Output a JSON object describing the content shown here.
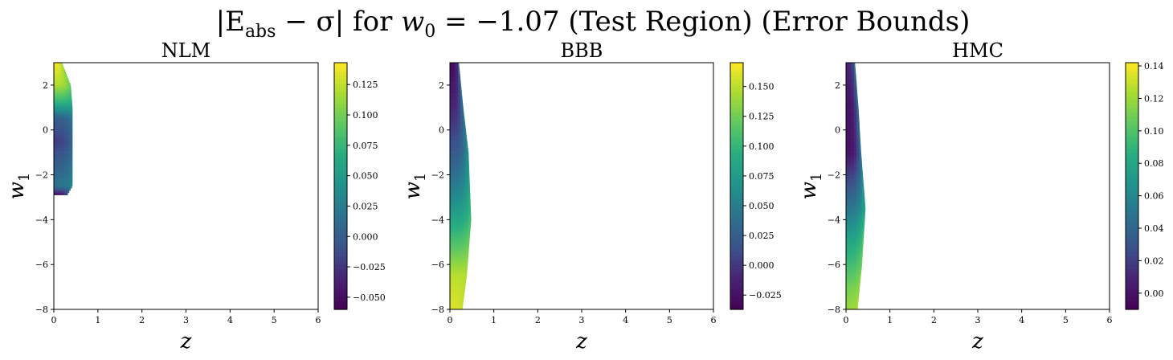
{
  "figure": {
    "title_parts": {
      "a": "|E",
      "a_sub": "abs",
      "b": " − σ| for ",
      "c": "w",
      "c_sub": "0",
      "d": " = −1.07 (Test Region) (Error Bounds)"
    }
  },
  "chart_data": [
    {
      "type": "heatmap",
      "title": "NLM",
      "xlabel": "z",
      "ylabel": "w1",
      "xlim": [
        0,
        6
      ],
      "ylim": [
        -8,
        3
      ],
      "xticks": [
        0,
        1,
        2,
        3,
        4,
        5,
        6
      ],
      "yticks": [
        -8,
        -6,
        -4,
        -2,
        0,
        2
      ],
      "colorbar": {
        "colormap": "viridis",
        "vmin": -0.06,
        "vmax": 0.143,
        "ticks": [
          "-0.050",
          "-0.025",
          "0.000",
          "0.025",
          "0.050",
          "0.075",
          "0.100",
          "0.125"
        ],
        "tick_values": [
          -0.05,
          -0.025,
          0.0,
          0.025,
          0.05,
          0.075,
          0.1,
          0.125
        ]
      },
      "region": {
        "w1_min": -2.9,
        "w1_max": 3.0,
        "z_extent_by_w1": [
          {
            "w1": 3.0,
            "z_max": 0.18
          },
          {
            "w1": 2.0,
            "z_max": 0.38
          },
          {
            "w1": 1.0,
            "z_max": 0.42
          },
          {
            "w1": -1.0,
            "z_max": 0.42
          },
          {
            "w1": -2.5,
            "z_max": 0.42
          },
          {
            "w1": -2.9,
            "z_max": 0.3
          }
        ],
        "value_by_w1": [
          {
            "w1": 3.0,
            "value": 0.14
          },
          {
            "w1": 2.0,
            "value": 0.12
          },
          {
            "w1": 1.2,
            "value": 0.07
          },
          {
            "w1": 0.5,
            "value": 0.0
          },
          {
            "w1": -0.5,
            "value": -0.02
          },
          {
            "w1": -1.5,
            "value": 0.0
          },
          {
            "w1": -2.5,
            "value": 0.02
          },
          {
            "w1": -2.9,
            "value": -0.05
          }
        ],
        "right_edge_value": 0.055
      }
    },
    {
      "type": "heatmap",
      "title": "BBB",
      "xlabel": "z",
      "ylabel": "w1",
      "xlim": [
        0,
        6
      ],
      "ylim": [
        -8,
        3
      ],
      "xticks": [
        0,
        1,
        2,
        3,
        4,
        5,
        6
      ],
      "yticks": [
        -8,
        -6,
        -4,
        -2,
        0,
        2
      ],
      "colorbar": {
        "colormap": "viridis",
        "vmin": -0.037,
        "vmax": 0.17,
        "ticks": [
          "-0.025",
          "0.000",
          "0.025",
          "0.050",
          "0.075",
          "0.100",
          "0.125",
          "0.150"
        ],
        "tick_values": [
          -0.025,
          0.0,
          0.025,
          0.05,
          0.075,
          0.1,
          0.125,
          0.15
        ]
      },
      "region": {
        "w1_min": -8.0,
        "w1_max": 3.0,
        "z_extent_by_w1": [
          {
            "w1": 3.0,
            "z_max": 0.2
          },
          {
            "w1": 1.0,
            "z_max": 0.3
          },
          {
            "w1": -1.0,
            "z_max": 0.42
          },
          {
            "w1": -4.0,
            "z_max": 0.48
          },
          {
            "w1": -6.5,
            "z_max": 0.38
          },
          {
            "w1": -8.0,
            "z_max": 0.28
          }
        ],
        "value_by_w1": [
          {
            "w1": 3.0,
            "value": -0.03
          },
          {
            "w1": 1.0,
            "value": -0.01
          },
          {
            "w1": -1.0,
            "value": 0.02
          },
          {
            "w1": -3.0,
            "value": 0.06
          },
          {
            "w1": -5.0,
            "value": 0.11
          },
          {
            "w1": -6.5,
            "value": 0.15
          },
          {
            "w1": -8.0,
            "value": 0.16
          }
        ],
        "right_edge_value": 0.14
      }
    },
    {
      "type": "heatmap",
      "title": "HMC",
      "xlabel": "z",
      "ylabel": "w1",
      "xlim": [
        0,
        6
      ],
      "ylim": [
        -8,
        3
      ],
      "xticks": [
        0,
        1,
        2,
        3,
        4,
        5,
        6
      ],
      "yticks": [
        -8,
        -6,
        -4,
        -2,
        0,
        2
      ],
      "colorbar": {
        "colormap": "viridis",
        "vmin": -0.01,
        "vmax": 0.142,
        "ticks": [
          "0.00",
          "0.02",
          "0.04",
          "0.06",
          "0.08",
          "0.10",
          "0.12",
          "0.14"
        ],
        "tick_values": [
          0.0,
          0.02,
          0.04,
          0.06,
          0.08,
          0.1,
          0.12,
          0.14
        ]
      },
      "region": {
        "w1_min": -8.0,
        "w1_max": 3.0,
        "z_extent_by_w1": [
          {
            "w1": 3.0,
            "z_max": 0.2
          },
          {
            "w1": 1.0,
            "z_max": 0.28
          },
          {
            "w1": -1.0,
            "z_max": 0.34
          },
          {
            "w1": -3.5,
            "z_max": 0.44
          },
          {
            "w1": -6.0,
            "z_max": 0.36
          },
          {
            "w1": -8.0,
            "z_max": 0.26
          }
        ],
        "value_by_w1": [
          {
            "w1": 3.0,
            "value": 0.01
          },
          {
            "w1": 1.0,
            "value": 0.0
          },
          {
            "w1": -1.0,
            "value": 0.0
          },
          {
            "w1": -3.0,
            "value": 0.04
          },
          {
            "w1": -5.0,
            "value": 0.08
          },
          {
            "w1": -7.0,
            "value": 0.11
          },
          {
            "w1": -8.0,
            "value": 0.12
          }
        ],
        "right_edge_value": 0.13
      }
    }
  ]
}
